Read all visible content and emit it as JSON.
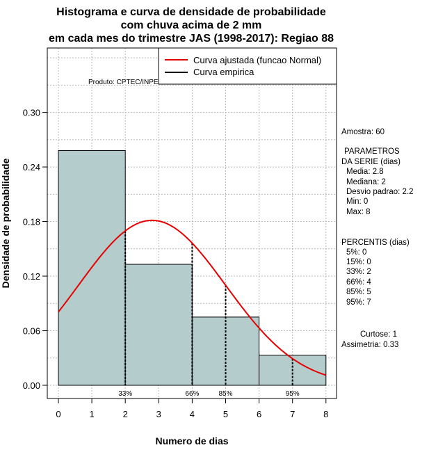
{
  "chart_data": {
    "type": "histogram",
    "title_lines": [
      "Histograma e curva de densidade de probabilidade",
      "com chuva acima de 2 mm",
      "em cada mes do trimestre JAS (1998-2017): Regiao 88"
    ],
    "xlabel": "Numero de dias",
    "ylabel": "Densidade de probabilidade",
    "xlim": [
      0,
      8
    ],
    "ylim": [
      0,
      0.3
    ],
    "x_ticks": [
      0,
      1,
      2,
      3,
      4,
      5,
      6,
      7,
      8
    ],
    "y_ticks": [
      "0.00",
      "0.06",
      "0.12",
      "0.18",
      "0.24",
      "0.30"
    ],
    "grid": true,
    "bars": [
      {
        "x0": 0,
        "x1": 2,
        "density": 0.258
      },
      {
        "x0": 2,
        "x1": 4,
        "density": 0.133
      },
      {
        "x0": 4,
        "x1": 6,
        "density": 0.075
      },
      {
        "x0": 6,
        "x1": 8,
        "density": 0.033
      }
    ],
    "fitted_curve": {
      "name": "Curva ajustada (funcao Normal)",
      "color": "#e60000",
      "mean": 2.8,
      "sd": 2.2
    },
    "empirical_curve": {
      "name": "Curva empirica",
      "color": "#000000"
    },
    "percentile_markers": [
      {
        "x": 2,
        "label": "33%"
      },
      {
        "x": 4,
        "label": "66%"
      },
      {
        "x": 5,
        "label": "85%"
      },
      {
        "x": 7,
        "label": "95%"
      }
    ],
    "bar_color": "#b5cccc",
    "legend_position": "top-right"
  },
  "source": "Produto: CPTEC/INPE",
  "stats": {
    "amostra": "Amostra: 60",
    "params_title": [
      "PARAMETROS",
      "DA SERIE (dias)"
    ],
    "params": [
      "Media: 2.8",
      "Mediana: 2",
      "Desvio padrao: 2.2",
      "Min: 0",
      "Max: 8"
    ],
    "percentis_title": "PERCENTIS (dias)",
    "percentis": [
      "5%: 0",
      "15%: 0",
      "33%: 2",
      "66%: 4",
      "85%: 5",
      "95%: 7"
    ],
    "curtose": "Curtose: 1",
    "assimetria": "Assimetria: 0.33"
  }
}
